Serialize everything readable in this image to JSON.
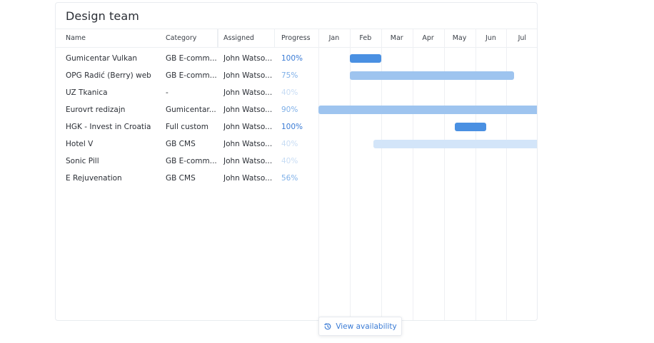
{
  "panel": {
    "title": "Design team"
  },
  "columns": {
    "name": "Name",
    "category": "Category",
    "assigned": "Assigned",
    "progress": "Progress"
  },
  "months": [
    "Jan",
    "Feb",
    "Mar",
    "Apr",
    "May",
    "Jun",
    "Jul"
  ],
  "colors": {
    "bar_strong": "#4a90e2",
    "bar_medium": "#9ec4ef",
    "bar_light": "#d3e5f9",
    "progress_strong": "#3a7bd5",
    "progress_medium": "#7fb0e8",
    "progress_faint": "#c7dcf4"
  },
  "projects": [
    {
      "name": "Gumicentar Vulkan",
      "category": "GB E-comm...",
      "assigned": "John Watso...",
      "progress": "100%",
      "progress_value": 100,
      "bar": {
        "start_month": 1.0,
        "end_month": 2.0,
        "tone": "strong"
      }
    },
    {
      "name": "OPG Radić (Berry) web",
      "category": "GB E-comm...",
      "assigned": "John Watso...",
      "progress": "75%",
      "progress_value": 75,
      "bar": {
        "start_month": 1.0,
        "end_month": 6.25,
        "tone": "medium"
      }
    },
    {
      "name": "UZ Tkanica",
      "category": "-",
      "assigned": "John Watso...",
      "progress": "40%",
      "progress_value": 40,
      "bar": null
    },
    {
      "name": "Eurovrt redizajn",
      "category": "Gumicentar...",
      "assigned": "John Watso...",
      "progress": "90%",
      "progress_value": 90,
      "bar": {
        "start_month": 0.0,
        "end_month": 7.0,
        "tone": "medium"
      }
    },
    {
      "name": "HGK - Invest in Croatia",
      "category": "Full custom",
      "assigned": "John Watso...",
      "progress": "100%",
      "progress_value": 100,
      "bar": {
        "start_month": 4.35,
        "end_month": 5.35,
        "tone": "strong"
      }
    },
    {
      "name": "Hotel V",
      "category": "GB CMS",
      "assigned": "John Watso...",
      "progress": "40%",
      "progress_value": 40,
      "bar": {
        "start_month": 1.75,
        "end_month": 7.0,
        "tone": "light"
      }
    },
    {
      "name": "Sonic Pill",
      "category": "GB E-comm...",
      "assigned": "John Watso...",
      "progress": "40%",
      "progress_value": 40,
      "bar": null
    },
    {
      "name": "E Rejuvenation",
      "category": "GB CMS",
      "assigned": "John Watso...",
      "progress": "56%",
      "progress_value": 56,
      "bar": null
    }
  ],
  "footer": {
    "availability_label": "View availability",
    "availability_icon": "history-clock-icon"
  }
}
